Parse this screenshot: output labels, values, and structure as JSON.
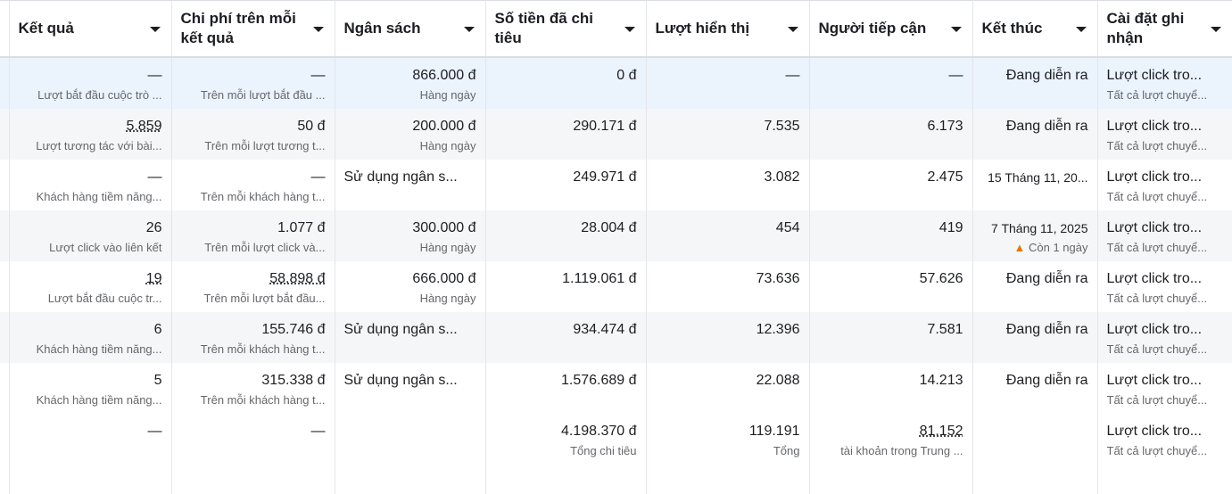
{
  "columns": [
    "",
    "Kết quả",
    "Chi phí trên mỗi kết quả",
    "Ngân sách",
    "Số tiền đã chi tiêu",
    "Lượt hiển thị",
    "Người tiếp cận",
    "Kết thúc",
    "Cài đặt ghi nhận"
  ],
  "rows": [
    {
      "result": "—",
      "result_sub": "Lượt bắt đầu cuộc trò ...",
      "cpr": "—",
      "cpr_sub": "Trên mỗi lượt bắt đầu ...",
      "budget": "866.000 đ",
      "budget_sub": "Hàng ngày",
      "spent": "0 đ",
      "impr": "—",
      "reach": "—",
      "end": "Đang diễn ra",
      "end_sub": "",
      "attr": "Lượt click tro...",
      "attr_sub": "Tất cả lượt chuyể..."
    },
    {
      "result": "5.859",
      "result_sub": "Lượt tương tác với bài...",
      "cpr": "50 đ",
      "cpr_sub": "Trên mỗi lượt tương t...",
      "budget": "200.000 đ",
      "budget_sub": "Hàng ngày",
      "spent": "290.171 đ",
      "impr": "7.535",
      "reach": "6.173",
      "end": "Đang diễn ra",
      "end_sub": "",
      "attr": "Lượt click tro...",
      "attr_sub": "Tất cả lượt chuyể..."
    },
    {
      "result": "—",
      "result_sub": "Khách hàng tiềm năng...",
      "cpr": "—",
      "cpr_sub": "Trên mỗi khách hàng t...",
      "budget": "Sử dụng ngân s...",
      "budget_sub": "",
      "spent": "249.971 đ",
      "impr": "3.082",
      "reach": "2.475",
      "end": "15 Tháng 11, 20...",
      "end_sub": "",
      "attr": "Lượt click tro...",
      "attr_sub": "Tất cả lượt chuyể..."
    },
    {
      "result": "26",
      "result_sub": "Lượt click vào liên kết",
      "cpr": "1.077 đ",
      "cpr_sub": "Trên mỗi lượt click và...",
      "budget": "300.000 đ",
      "budget_sub": "Hàng ngày",
      "spent": "28.004 đ",
      "impr": "454",
      "reach": "419",
      "end": "7 Tháng 11, 2025",
      "end_sub": "Còn 1 ngày",
      "attr": "Lượt click tro...",
      "attr_sub": "Tất cả lượt chuyể..."
    },
    {
      "result": "19",
      "result_sub": "Lượt bắt đầu cuộc tr...",
      "cpr": "58.898 đ",
      "cpr_sub": "Trên mỗi lượt bắt đầu...",
      "budget": "666.000 đ",
      "budget_sub": "Hàng ngày",
      "spent": "1.119.061 đ",
      "impr": "73.636",
      "reach": "57.626",
      "end": "Đang diễn ra",
      "end_sub": "",
      "attr": "Lượt click tro...",
      "attr_sub": "Tất cả lượt chuyể..."
    },
    {
      "result": "6",
      "result_sub": "Khách hàng tiềm năng...",
      "cpr": "155.746 đ",
      "cpr_sub": "Trên mỗi khách hàng t...",
      "budget": "Sử dụng ngân s...",
      "budget_sub": "",
      "spent": "934.474 đ",
      "impr": "12.396",
      "reach": "7.581",
      "end": "Đang diễn ra",
      "end_sub": "",
      "attr": "Lượt click tro...",
      "attr_sub": "Tất cả lượt chuyể..."
    },
    {
      "result": "5",
      "result_sub": "Khách hàng tiềm năng...",
      "cpr": "315.338 đ",
      "cpr_sub": "Trên mỗi khách hàng t...",
      "budget": "Sử dụng ngân s...",
      "budget_sub": "",
      "spent": "1.576.689 đ",
      "impr": "22.088",
      "reach": "14.213",
      "end": "Đang diễn ra",
      "end_sub": "",
      "attr": "Lượt click tro...",
      "attr_sub": "Tất cả lượt chuyể..."
    }
  ],
  "total": {
    "result": "—",
    "cpr": "—",
    "spent": "4.198.370 đ",
    "spent_sub": "Tổng chi tiêu",
    "impr": "119.191",
    "impr_sub": "Tổng",
    "reach": "81.152",
    "reach_sub": "tài khoản trong Trung ...",
    "attr": "Lượt click tro...",
    "attr_sub": "Tất cả lượt chuyể..."
  }
}
